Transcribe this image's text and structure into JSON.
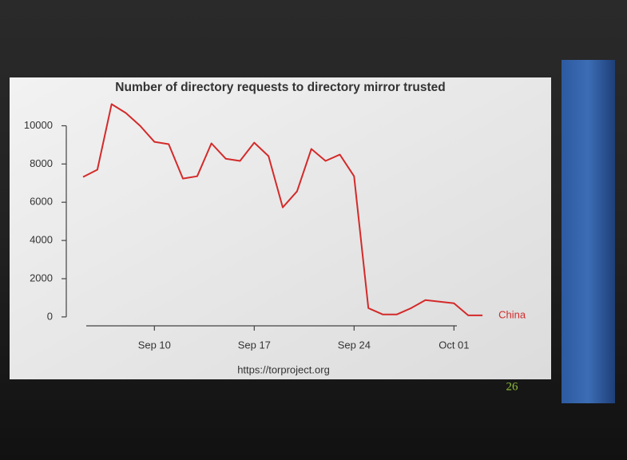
{
  "chart_data": {
    "type": "line",
    "title": "Number of directory requests to directory mirror trusted",
    "x": [
      "Sep 05",
      "Sep 06",
      "Sep 07",
      "Sep 08",
      "Sep 09",
      "Sep 10",
      "Sep 11",
      "Sep 12",
      "Sep 13",
      "Sep 14",
      "Sep 15",
      "Sep 16",
      "Sep 17",
      "Sep 18",
      "Sep 19",
      "Sep 20",
      "Sep 21",
      "Sep 22",
      "Sep 23",
      "Sep 24",
      "Sep 25",
      "Sep 26",
      "Sep 27",
      "Sep 28",
      "Sep 29",
      "Sep 30",
      "Oct 01",
      "Oct 02",
      "Oct 03"
    ],
    "series": [
      {
        "name": "China",
        "color": "#d42a2a",
        "values": [
          7320,
          7700,
          11130,
          10670,
          10000,
          9160,
          9040,
          7240,
          7360,
          9080,
          8280,
          8160,
          9120,
          8410,
          5730,
          6570,
          8790,
          8160,
          8490,
          7360,
          460,
          130,
          130,
          460,
          880,
          800,
          710,
          80,
          80
        ]
      }
    ],
    "xticks": [
      "Sep 10",
      "Sep 17",
      "Sep 24",
      "Oct 01"
    ],
    "ylim": [
      -550,
      11650
    ],
    "yticks": [
      0,
      2000,
      4000,
      6000,
      8000,
      10000
    ],
    "caption": "https://torproject.org",
    "slide_number": "26"
  }
}
